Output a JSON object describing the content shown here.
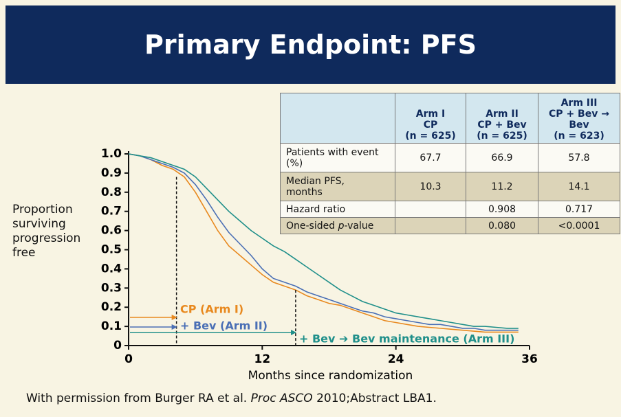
{
  "title": "Primary Endpoint: PFS",
  "table": {
    "headers": [
      [
        "Arm I",
        "CP",
        "(n = 625)"
      ],
      [
        "Arm II",
        "CP + Bev",
        "(n = 625)"
      ],
      [
        "Arm III",
        "CP + Bev →",
        "Bev",
        "(n = 623)"
      ]
    ],
    "rows": [
      [
        [
          "Patients with event",
          "(%)"
        ],
        "67.7",
        "66.9",
        "57.8"
      ],
      [
        [
          "Median PFS,",
          "months"
        ],
        "10.3",
        "11.2",
        "14.1"
      ],
      [
        [
          "Hazard ratio"
        ],
        null,
        "0.908",
        "0.717"
      ],
      [
        [
          "One-sided ",
          "p",
          "-value"
        ],
        null,
        "0.080",
        "<0.0001"
      ]
    ]
  },
  "footnote": [
    "With permission from Burger RA et al. ",
    "Proc ASCO",
    " 2010;Abstract LBA1."
  ],
  "chart_data": {
    "type": "line",
    "x_label": "Months since randomization",
    "y_label": "Proportion surviving progression free",
    "x": [
      0,
      1,
      2,
      3,
      4,
      5,
      6,
      7,
      8,
      9,
      10,
      11,
      12,
      13,
      14,
      15,
      16,
      17,
      18,
      19,
      20,
      21,
      22,
      23,
      24,
      25,
      26,
      27,
      28,
      29,
      30,
      31,
      32,
      33,
      34,
      35
    ],
    "series": [
      {
        "name": "CP (Arm I)",
        "color": "#e8891f",
        "values": [
          1.0,
          0.99,
          0.97,
          0.94,
          0.92,
          0.88,
          0.8,
          0.7,
          0.6,
          0.52,
          0.47,
          0.42,
          0.37,
          0.33,
          0.31,
          0.29,
          0.26,
          0.24,
          0.22,
          0.21,
          0.19,
          0.17,
          0.15,
          0.13,
          0.12,
          0.11,
          0.1,
          0.095,
          0.09,
          0.085,
          0.08,
          0.075,
          0.07,
          0.07,
          0.07,
          0.07
        ]
      },
      {
        "name": "+ Bev (Arm II)",
        "color": "#4a6fb5",
        "values": [
          1.0,
          0.99,
          0.97,
          0.95,
          0.93,
          0.9,
          0.84,
          0.76,
          0.67,
          0.59,
          0.53,
          0.47,
          0.4,
          0.35,
          0.33,
          0.31,
          0.28,
          0.26,
          0.24,
          0.22,
          0.2,
          0.18,
          0.17,
          0.15,
          0.14,
          0.13,
          0.12,
          0.11,
          0.11,
          0.1,
          0.09,
          0.09,
          0.08,
          0.08,
          0.08,
          0.08
        ]
      },
      {
        "name": "+ Bev ➔ Bev maintenance (Arm III)",
        "color": "#1f8f8a",
        "values": [
          1.0,
          0.99,
          0.98,
          0.96,
          0.94,
          0.92,
          0.88,
          0.82,
          0.76,
          0.7,
          0.65,
          0.6,
          0.56,
          0.52,
          0.49,
          0.45,
          0.41,
          0.37,
          0.33,
          0.29,
          0.26,
          0.23,
          0.21,
          0.19,
          0.17,
          0.16,
          0.15,
          0.14,
          0.13,
          0.12,
          0.11,
          0.1,
          0.1,
          0.095,
          0.09,
          0.09
        ]
      }
    ],
    "reference_lines": [
      4.3,
      15
    ],
    "xlim": [
      0,
      36
    ],
    "xticks": [
      0,
      12,
      24,
      36
    ],
    "ylim": [
      0,
      1
    ],
    "yticks": [
      0,
      0.1,
      0.2,
      0.3,
      0.4,
      0.5,
      0.6,
      0.7,
      0.8,
      0.9,
      {
        "value": 1,
        "label": "1.0"
      }
    ]
  }
}
